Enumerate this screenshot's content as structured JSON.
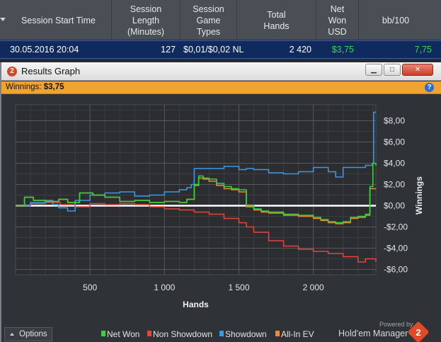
{
  "session_table": {
    "headers": [
      "Session Start Time",
      "Session\nLength\n(Minutes)",
      "Session\nGame\nTypes",
      "Total\nHands",
      "Net\nWon\nUSD",
      "bb/100"
    ],
    "row": {
      "start_time": "30.05.2016 20:04",
      "length": "127",
      "game_types": "$0,01/$0,02 NL",
      "hands": "2 420",
      "net_won": "$3,75",
      "bb100": "7,75"
    }
  },
  "window": {
    "title": "Results Graph",
    "winnings_label": "Winnings:",
    "winnings_value": "$3,75",
    "help_icon": "?",
    "minimize_glyph": "▁",
    "maximize_glyph": "□",
    "close_glyph": "✕"
  },
  "footer": {
    "options_label": "Options",
    "powered_by": "Powered by",
    "brand": "Hold'em Manager",
    "brand_mark": "2"
  },
  "colors": {
    "net_won": "#35d43a",
    "non_showdown": "#e5453a",
    "showdown": "#3d97e6",
    "all_in_ev": "#f08a2c",
    "zero_line": "#ffffff"
  },
  "chart_data": {
    "type": "line",
    "xlabel": "Hands",
    "ylabel": "Winnings",
    "xlim": [
      0,
      2420
    ],
    "ylim": [
      -6.5,
      9.5
    ],
    "x_ticks": [
      500,
      1000,
      1500,
      2000
    ],
    "x_tick_labels": [
      "500",
      "1 000",
      "1 500",
      "2 000"
    ],
    "y_ticks": [
      8,
      6,
      4,
      2,
      0,
      -2,
      -4,
      -6
    ],
    "y_tick_labels": [
      "$8,00",
      "$6,00",
      "$4,00",
      "$2,00",
      "$0,00",
      "-$2,00",
      "-$4,00",
      "-$6,00"
    ],
    "grid": true,
    "legend_position": "bottom",
    "series": [
      {
        "name": "Net Won",
        "x": [
          0,
          60,
          120,
          200,
          290,
          350,
          390,
          430,
          520,
          600,
          700,
          800,
          900,
          1000,
          1100,
          1150,
          1200,
          1230,
          1260,
          1300,
          1350,
          1400,
          1450,
          1500,
          1550,
          1600,
          1650,
          1700,
          1800,
          1900,
          2000,
          2050,
          2100,
          2150,
          2200,
          2250,
          2300,
          2350,
          2380,
          2400,
          2420
        ],
        "y": [
          0.0,
          0.8,
          0.5,
          0.4,
          0.6,
          0.3,
          0.3,
          1.2,
          1.0,
          0.8,
          0.4,
          0.5,
          0.3,
          0.4,
          0.3,
          0.6,
          2.0,
          2.8,
          2.6,
          2.5,
          2.1,
          1.8,
          1.6,
          1.5,
          0.0,
          -0.3,
          -0.5,
          -0.6,
          -0.8,
          -0.9,
          -1.1,
          -1.3,
          -1.5,
          -1.6,
          -1.5,
          -1.1,
          -1.0,
          -0.8,
          1.8,
          4.0,
          3.75
        ]
      },
      {
        "name": "Non Showdown",
        "x": [
          0,
          100,
          200,
          300,
          400,
          500,
          600,
          700,
          800,
          900,
          1000,
          1100,
          1200,
          1300,
          1400,
          1500,
          1550,
          1600,
          1700,
          1800,
          1900,
          2000,
          2100,
          2200,
          2300,
          2350,
          2400,
          2420
        ],
        "y": [
          0.0,
          0.2,
          0.3,
          0.1,
          -0.1,
          0.2,
          0.1,
          0.2,
          0.1,
          -0.1,
          -0.3,
          -0.4,
          -0.6,
          -0.8,
          -1.2,
          -1.6,
          -2.0,
          -2.5,
          -3.3,
          -3.8,
          -4.1,
          -4.3,
          -4.5,
          -4.8,
          -5.3,
          -5.0,
          -5.0,
          -5.3
        ]
      },
      {
        "name": "Showdown",
        "x": [
          0,
          100,
          200,
          250,
          290,
          350,
          400,
          500,
          600,
          700,
          800,
          900,
          1000,
          1100,
          1150,
          1180,
          1200,
          1300,
          1400,
          1500,
          1550,
          1600,
          1700,
          1800,
          1900,
          2000,
          2100,
          2150,
          2200,
          2300,
          2350,
          2380,
          2395,
          2405,
          2420
        ],
        "y": [
          0.0,
          0.3,
          0.5,
          0.1,
          -0.2,
          -0.5,
          0.5,
          1.0,
          1.2,
          1.3,
          0.9,
          1.0,
          1.3,
          1.5,
          1.7,
          2.0,
          3.5,
          3.5,
          3.7,
          3.4,
          3.5,
          3.4,
          3.1,
          3.0,
          3.2,
          3.6,
          3.2,
          2.7,
          3.6,
          3.6,
          3.8,
          3.8,
          4.0,
          8.8,
          8.8
        ]
      },
      {
        "name": "All-In EV",
        "x": [
          0,
          60,
          120,
          200,
          290,
          350,
          390,
          430,
          520,
          600,
          700,
          800,
          900,
          1000,
          1100,
          1150,
          1200,
          1230,
          1260,
          1300,
          1350,
          1400,
          1450,
          1500,
          1550,
          1600,
          1650,
          1700,
          1800,
          1900,
          2000,
          2050,
          2100,
          2150,
          2200,
          2250,
          2300,
          2350,
          2380,
          2400,
          2420
        ],
        "y": [
          0.0,
          0.8,
          0.5,
          0.4,
          0.6,
          0.3,
          0.3,
          1.2,
          1.0,
          0.8,
          0.4,
          0.5,
          0.3,
          0.4,
          0.3,
          0.6,
          1.9,
          2.6,
          2.5,
          2.3,
          1.9,
          1.6,
          1.5,
          1.3,
          -0.1,
          -0.4,
          -0.6,
          -0.7,
          -0.9,
          -1.0,
          -1.2,
          -1.4,
          -1.6,
          -1.7,
          -1.6,
          -1.2,
          -1.1,
          -0.9,
          1.6,
          1.6,
          1.6
        ]
      }
    ]
  }
}
